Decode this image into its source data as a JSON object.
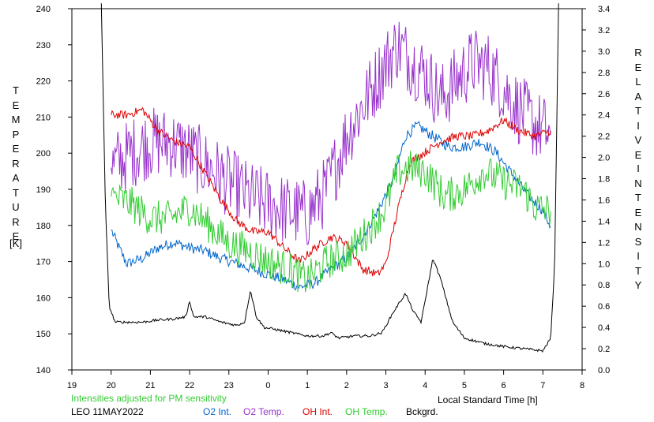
{
  "chart_data": {
    "type": "line",
    "left_axis": {
      "label_letters": [
        "T",
        "E",
        "M",
        "P",
        "E",
        "R",
        "A",
        "T",
        "U",
        "R",
        "E"
      ],
      "unit": "[K]",
      "ylim": [
        140,
        240
      ],
      "ticks": [
        "140",
        "150",
        "160",
        "170",
        "180",
        "190",
        "200",
        "210",
        "220",
        "230",
        "240"
      ]
    },
    "right_axis": {
      "label_letters_1": [
        "R",
        "E",
        "L",
        "A",
        "T",
        "I",
        "V",
        "E"
      ],
      "label_letters_2": [
        "I",
        "N",
        "T",
        "E",
        "N",
        "S",
        "I",
        "T",
        "Y"
      ],
      "ylim": [
        0.0,
        3.4
      ],
      "ticks": [
        "0.0",
        "0.2",
        "0.4",
        "0.6",
        "0.8",
        "1.0",
        "1.2",
        "1.4",
        "1.6",
        "1.8",
        "2.0",
        "2.2",
        "2.4",
        "2.6",
        "2.8",
        "3.0",
        "3.2",
        "3.4"
      ]
    },
    "x_axis": {
      "label": "Local Standard Time [h]",
      "xlim": [
        19,
        32
      ],
      "ticks": [
        "19",
        "20",
        "21",
        "22",
        "23",
        "0",
        "1",
        "2",
        "3",
        "4",
        "5",
        "6",
        "7",
        "8"
      ]
    },
    "note": "Intensities adjusted for PM sensitivity",
    "site_date": "LEO 11MAY2022",
    "grid": false,
    "legend_position": "bottom",
    "series": [
      {
        "name": "O2 Int.",
        "axis": "right",
        "color": "#0066cc",
        "noise": 0.05,
        "x": [
          20.0,
          20.2,
          20.4,
          20.8,
          21.2,
          21.6,
          22.0,
          22.4,
          22.8,
          23.2,
          23.6,
          24.0,
          24.4,
          24.8,
          25.2,
          25.6,
          26.0,
          26.4,
          26.8,
          27.2,
          27.5,
          27.8,
          28.2,
          28.6,
          29.0,
          29.4,
          29.8,
          30.2,
          30.6,
          31.0,
          31.2
        ],
        "y": [
          1.32,
          1.15,
          1.0,
          1.05,
          1.15,
          1.2,
          1.15,
          1.12,
          1.05,
          1.0,
          0.95,
          0.9,
          0.85,
          0.78,
          0.82,
          0.95,
          1.05,
          1.25,
          1.5,
          1.8,
          2.2,
          2.3,
          2.2,
          2.1,
          2.1,
          2.15,
          2.05,
          1.85,
          1.65,
          1.5,
          1.35
        ]
      },
      {
        "name": "O2 Temp.",
        "axis": "left",
        "color": "#9933cc",
        "noise": 10,
        "x": [
          20.0,
          20.5,
          21.0,
          21.5,
          22.0,
          22.5,
          23.0,
          23.5,
          24.0,
          24.5,
          25.0,
          25.5,
          26.0,
          26.5,
          27.0,
          27.3,
          27.6,
          28.0,
          28.4,
          28.8,
          29.2,
          29.6,
          30.0,
          30.4,
          30.8,
          31.2
        ],
        "y": [
          196,
          200,
          203,
          203,
          200,
          196,
          192,
          188,
          186,
          184,
          183,
          190,
          205,
          215,
          225,
          230,
          226,
          222,
          215,
          220,
          225,
          224,
          218,
          212,
          208,
          205
        ]
      },
      {
        "name": "OH Int.",
        "axis": "right",
        "color": "#dd0000",
        "noise": 0.04,
        "x": [
          20.0,
          20.4,
          20.8,
          21.2,
          21.6,
          22.0,
          22.4,
          22.8,
          23.2,
          23.6,
          24.0,
          24.4,
          24.8,
          25.2,
          25.6,
          26.0,
          26.4,
          26.8,
          27.0,
          27.3,
          27.6,
          28.0,
          28.4,
          28.8,
          29.2,
          29.6,
          30.0,
          30.4,
          30.8,
          31.2
        ],
        "y": [
          2.4,
          2.4,
          2.45,
          2.25,
          2.15,
          2.1,
          1.85,
          1.6,
          1.4,
          1.3,
          1.3,
          1.15,
          1.02,
          1.15,
          1.25,
          1.2,
          0.95,
          0.9,
          1.0,
          1.5,
          1.95,
          2.05,
          2.15,
          2.2,
          2.2,
          2.25,
          2.35,
          2.25,
          2.2,
          2.25
        ]
      },
      {
        "name": "OH Temp.",
        "axis": "left",
        "color": "#33cc33",
        "noise": 5,
        "x": [
          20.0,
          20.5,
          21.0,
          21.5,
          22.0,
          22.5,
          23.0,
          23.5,
          24.0,
          24.5,
          25.0,
          25.5,
          26.0,
          26.5,
          27.0,
          27.3,
          27.6,
          28.0,
          28.5,
          29.0,
          29.5,
          30.0,
          30.5,
          30.8,
          31.2
        ],
        "y": [
          188,
          186,
          182,
          182,
          185,
          180,
          175,
          173,
          170,
          168,
          165,
          170,
          172,
          178,
          185,
          195,
          196,
          195,
          188,
          190,
          195,
          192,
          190,
          185,
          184
        ]
      },
      {
        "name": "Bckgrd.",
        "axis": "right",
        "color": "#000000",
        "noise": 0.012,
        "x": [
          19.75,
          19.85,
          19.95,
          20.1,
          20.4,
          20.8,
          21.2,
          21.6,
          21.9,
          22.0,
          22.1,
          22.4,
          22.8,
          23.2,
          23.4,
          23.55,
          23.7,
          23.9,
          24.2,
          24.6,
          25.0,
          25.4,
          25.6,
          25.8,
          26.2,
          26.6,
          26.9,
          27.2,
          27.5,
          27.7,
          27.9,
          28.0,
          28.2,
          28.4,
          28.7,
          29.0,
          29.5,
          30.0,
          30.5,
          31.0,
          31.2,
          31.3,
          31.4
        ],
        "y": [
          3.45,
          1.6,
          0.6,
          0.45,
          0.45,
          0.45,
          0.47,
          0.48,
          0.5,
          0.65,
          0.5,
          0.5,
          0.45,
          0.42,
          0.45,
          0.75,
          0.5,
          0.4,
          0.38,
          0.35,
          0.32,
          0.32,
          0.35,
          0.3,
          0.32,
          0.32,
          0.35,
          0.55,
          0.72,
          0.55,
          0.45,
          0.65,
          1.05,
          0.85,
          0.45,
          0.3,
          0.25,
          0.22,
          0.2,
          0.18,
          0.3,
          1.0,
          3.45
        ]
      }
    ]
  }
}
